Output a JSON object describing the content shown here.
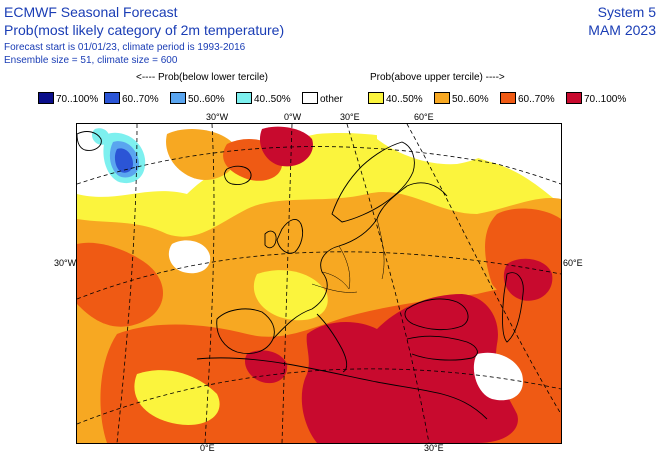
{
  "header": {
    "title": "ECMWF Seasonal Forecast",
    "subtitle": "Prob(most likely category of 2m temperature)",
    "forecast_line": "Forecast start is 01/01/23, climate period is 1993-2016",
    "ensemble_line": "Ensemble size = 51, climate size = 600",
    "system": "System 5",
    "season": "MAM 2023"
  },
  "legend": {
    "below_label": "<---- Prob(below lower tercile)",
    "above_label": "Prob(above upper tercile) ---->",
    "items": [
      {
        "label": "70..100%",
        "color": "#0a0e8a"
      },
      {
        "label": "60..70%",
        "color": "#2b55d6"
      },
      {
        "label": "50..60%",
        "color": "#5aa5ef"
      },
      {
        "label": "40..50%",
        "color": "#7df0ef"
      },
      {
        "label": "other",
        "color": "#ffffff"
      },
      {
        "label": "40..50%",
        "color": "#fbf43d"
      },
      {
        "label": "50..60%",
        "color": "#f7a822"
      },
      {
        "label": "60..70%",
        "color": "#ef5a14"
      },
      {
        "label": "70..100%",
        "color": "#c80a2e"
      }
    ]
  },
  "map": {
    "top_labels": [
      "30°W",
      "0°W",
      "30°E",
      "60°E"
    ],
    "left_label": "30°W",
    "right_label": "60°E",
    "bottom_labels": [
      "0°E",
      "30°E"
    ]
  }
}
